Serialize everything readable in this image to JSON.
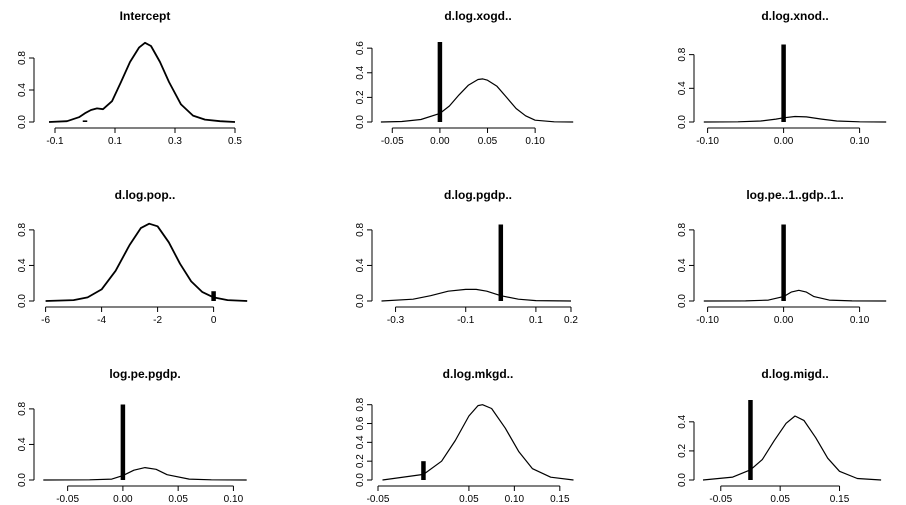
{
  "chart_data": [
    {
      "type": "line",
      "title": "Intercept",
      "xlim": [
        -0.15,
        0.55
      ],
      "ylim": [
        0,
        1.0
      ],
      "x_ticks": [
        -0.1,
        0.1,
        0.3,
        0.5
      ],
      "x_tick_labels": [
        "-0.1",
        "0.1",
        "0.3",
        "0.5"
      ],
      "y_ticks": [
        0.0,
        0.4,
        0.8
      ],
      "y_tick_labels": [
        "0.0",
        "0.4",
        "0.8"
      ],
      "density_curve": {
        "x": [
          -0.12,
          -0.06,
          -0.02,
          0.0,
          0.02,
          0.04,
          0.06,
          0.09,
          0.12,
          0.15,
          0.18,
          0.2,
          0.22,
          0.25,
          0.28,
          0.32,
          0.36,
          0.4,
          0.45,
          0.5
        ],
        "y": [
          0.0,
          0.01,
          0.06,
          0.11,
          0.15,
          0.17,
          0.16,
          0.26,
          0.5,
          0.75,
          0.93,
          0.99,
          0.95,
          0.75,
          0.5,
          0.22,
          0.08,
          0.03,
          0.01,
          0.0
        ]
      },
      "point_mass": {
        "x": 0.0,
        "height": 0.02
      }
    },
    {
      "type": "line",
      "title": "d.log.xogd..",
      "xlim": [
        -0.065,
        0.145
      ],
      "ylim": [
        0,
        0.65
      ],
      "x_ticks": [
        -0.05,
        0.0,
        0.05,
        0.1
      ],
      "x_tick_labels": [
        "-0.05",
        "0.00",
        "0.05",
        "0.10"
      ],
      "y_ticks": [
        0.0,
        0.2,
        0.4,
        0.6
      ],
      "y_tick_labels": [
        "0.0",
        "0.2",
        "0.4",
        "0.6"
      ],
      "density_curve": {
        "x": [
          -0.062,
          -0.04,
          -0.02,
          0.0,
          0.01,
          0.02,
          0.03,
          0.04,
          0.045,
          0.05,
          0.06,
          0.07,
          0.08,
          0.09,
          0.1,
          0.12,
          0.14
        ],
        "y": [
          0.0,
          0.004,
          0.02,
          0.07,
          0.13,
          0.22,
          0.3,
          0.345,
          0.35,
          0.34,
          0.29,
          0.2,
          0.11,
          0.05,
          0.015,
          0.002,
          0.0
        ]
      },
      "point_mass": {
        "x": 0.0,
        "height": 0.65
      }
    },
    {
      "type": "line",
      "title": "d.log.xnod..",
      "xlim": [
        -0.11,
        0.14
      ],
      "ylim": [
        0,
        0.95
      ],
      "x_ticks": [
        -0.1,
        0.0,
        0.1
      ],
      "x_tick_labels": [
        "-0.10",
        "0.00",
        "0.10"
      ],
      "y_ticks": [
        0.0,
        0.4,
        0.8
      ],
      "y_tick_labels": [
        "0.0",
        "0.4",
        "0.8"
      ],
      "density_curve": {
        "x": [
          -0.105,
          -0.06,
          -0.03,
          -0.01,
          0.0,
          0.015,
          0.03,
          0.05,
          0.07,
          0.1,
          0.135
        ],
        "y": [
          0.0,
          0.002,
          0.012,
          0.035,
          0.05,
          0.065,
          0.06,
          0.035,
          0.012,
          0.002,
          0.0
        ]
      },
      "point_mass": {
        "x": 0.0,
        "height": 0.92
      }
    },
    {
      "type": "line",
      "title": "d.log.pop..",
      "xlim": [
        -6.2,
        1.3
      ],
      "ylim": [
        0,
        0.9
      ],
      "x_ticks": [
        -6,
        -4,
        -2,
        0
      ],
      "x_tick_labels": [
        "-6",
        "-4",
        "-2",
        "0"
      ],
      "y_ticks": [
        0.0,
        0.4,
        0.8
      ],
      "y_tick_labels": [
        "0.0",
        "0.4",
        "0.8"
      ],
      "density_curve": {
        "x": [
          -6.0,
          -5.0,
          -4.5,
          -4.0,
          -3.5,
          -3.0,
          -2.6,
          -2.3,
          -2.0,
          -1.6,
          -1.2,
          -0.8,
          -0.4,
          0.0,
          0.5,
          1.2
        ],
        "y": [
          0.0,
          0.01,
          0.04,
          0.13,
          0.34,
          0.63,
          0.82,
          0.87,
          0.84,
          0.66,
          0.42,
          0.22,
          0.1,
          0.04,
          0.01,
          0.0
        ]
      },
      "point_mass": {
        "x": 0.0,
        "height": 0.11
      }
    },
    {
      "type": "line",
      "title": "d.log.pgdp..",
      "xlim": [
        -0.35,
        0.22
      ],
      "ylim": [
        0,
        0.9
      ],
      "x_ticks": [
        -0.3,
        -0.1,
        0.1,
        0.2
      ],
      "x_tick_labels": [
        "-0.3",
        "-0.1",
        "0.1",
        "0.2"
      ],
      "y_ticks": [
        0.0,
        0.4,
        0.8
      ],
      "y_tick_labels": [
        "0.0",
        "0.4",
        "0.8"
      ],
      "density_curve": {
        "x": [
          -0.34,
          -0.25,
          -0.2,
          -0.15,
          -0.1,
          -0.07,
          -0.04,
          0.0,
          0.05,
          0.1,
          0.2
        ],
        "y": [
          0.0,
          0.02,
          0.06,
          0.11,
          0.13,
          0.13,
          0.11,
          0.06,
          0.02,
          0.004,
          0.0
        ]
      },
      "point_mass": {
        "x": 0.0,
        "height": 0.86
      }
    },
    {
      "type": "line",
      "title": "log.pe..1..gdp..1..",
      "xlim": [
        -0.11,
        0.14
      ],
      "ylim": [
        0,
        0.9
      ],
      "x_ticks": [
        -0.1,
        0.0,
        0.1
      ],
      "x_tick_labels": [
        "-0.10",
        "0.00",
        "0.10"
      ],
      "y_ticks": [
        0.0,
        0.4,
        0.8
      ],
      "y_tick_labels": [
        "0.0",
        "0.4",
        "0.8"
      ],
      "density_curve": {
        "x": [
          -0.105,
          -0.05,
          -0.02,
          0.0,
          0.01,
          0.02,
          0.03,
          0.04,
          0.06,
          0.09,
          0.135
        ],
        "y": [
          0.0,
          0.001,
          0.01,
          0.05,
          0.1,
          0.12,
          0.1,
          0.05,
          0.01,
          0.001,
          0.0
        ]
      },
      "point_mass": {
        "x": 0.0,
        "height": 0.86
      }
    },
    {
      "type": "line",
      "title": "log.pe.pgdp.",
      "xlim": [
        -0.075,
        0.115
      ],
      "ylim": [
        0,
        0.9
      ],
      "x_ticks": [
        -0.05,
        0.0,
        0.05,
        0.1
      ],
      "x_tick_labels": [
        "-0.05",
        "0.00",
        "0.05",
        "0.10"
      ],
      "y_ticks": [
        0.0,
        0.4,
        0.8
      ],
      "y_tick_labels": [
        "0.0",
        "0.4",
        "0.8"
      ],
      "density_curve": {
        "x": [
          -0.072,
          -0.03,
          -0.01,
          0.0,
          0.01,
          0.02,
          0.03,
          0.04,
          0.06,
          0.08,
          0.112
        ],
        "y": [
          0.0,
          0.002,
          0.01,
          0.05,
          0.11,
          0.14,
          0.12,
          0.06,
          0.01,
          0.002,
          0.0
        ]
      },
      "point_mass": {
        "x": 0.0,
        "height": 0.85
      }
    },
    {
      "type": "line",
      "title": "d.log.mkgd..",
      "xlim": [
        -0.05,
        0.17
      ],
      "ylim": [
        0,
        0.85
      ],
      "x_ticks": [
        -0.05,
        0.05,
        0.1,
        0.15
      ],
      "x_tick_labels": [
        "-0.05",
        "0.05",
        "0.10",
        "0.15"
      ],
      "y_ticks": [
        0.0,
        0.2,
        0.4,
        0.6,
        0.8
      ],
      "y_tick_labels": [
        "0.0",
        "0.2",
        "0.4",
        "0.6",
        "0.8"
      ],
      "density_curve": {
        "x": [
          -0.045,
          0.0,
          0.02,
          0.035,
          0.05,
          0.06,
          0.065,
          0.075,
          0.09,
          0.105,
          0.12,
          0.14,
          0.165
        ],
        "y": [
          0.0,
          0.06,
          0.2,
          0.42,
          0.68,
          0.79,
          0.8,
          0.76,
          0.55,
          0.3,
          0.12,
          0.03,
          0.0
        ]
      },
      "point_mass": {
        "x": 0.0,
        "height": 0.2
      }
    },
    {
      "type": "line",
      "title": "d.log.migd..",
      "xlim": [
        -0.085,
        0.235
      ],
      "ylim": [
        0,
        0.55
      ],
      "x_ticks": [
        -0.05,
        0.05,
        0.15
      ],
      "x_tick_labels": [
        "-0.05",
        "0.05",
        "0.15"
      ],
      "y_ticks": [
        0.0,
        0.2,
        0.4
      ],
      "y_tick_labels": [
        "0.0",
        "0.2",
        "0.4"
      ],
      "density_curve": {
        "x": [
          -0.08,
          -0.03,
          0.0,
          0.02,
          0.04,
          0.06,
          0.075,
          0.09,
          0.11,
          0.13,
          0.15,
          0.18,
          0.22
        ],
        "y": [
          0.0,
          0.02,
          0.07,
          0.14,
          0.27,
          0.39,
          0.44,
          0.41,
          0.29,
          0.15,
          0.06,
          0.01,
          0.0
        ]
      },
      "point_mass": {
        "x": 0.0,
        "height": 0.55
      }
    }
  ]
}
